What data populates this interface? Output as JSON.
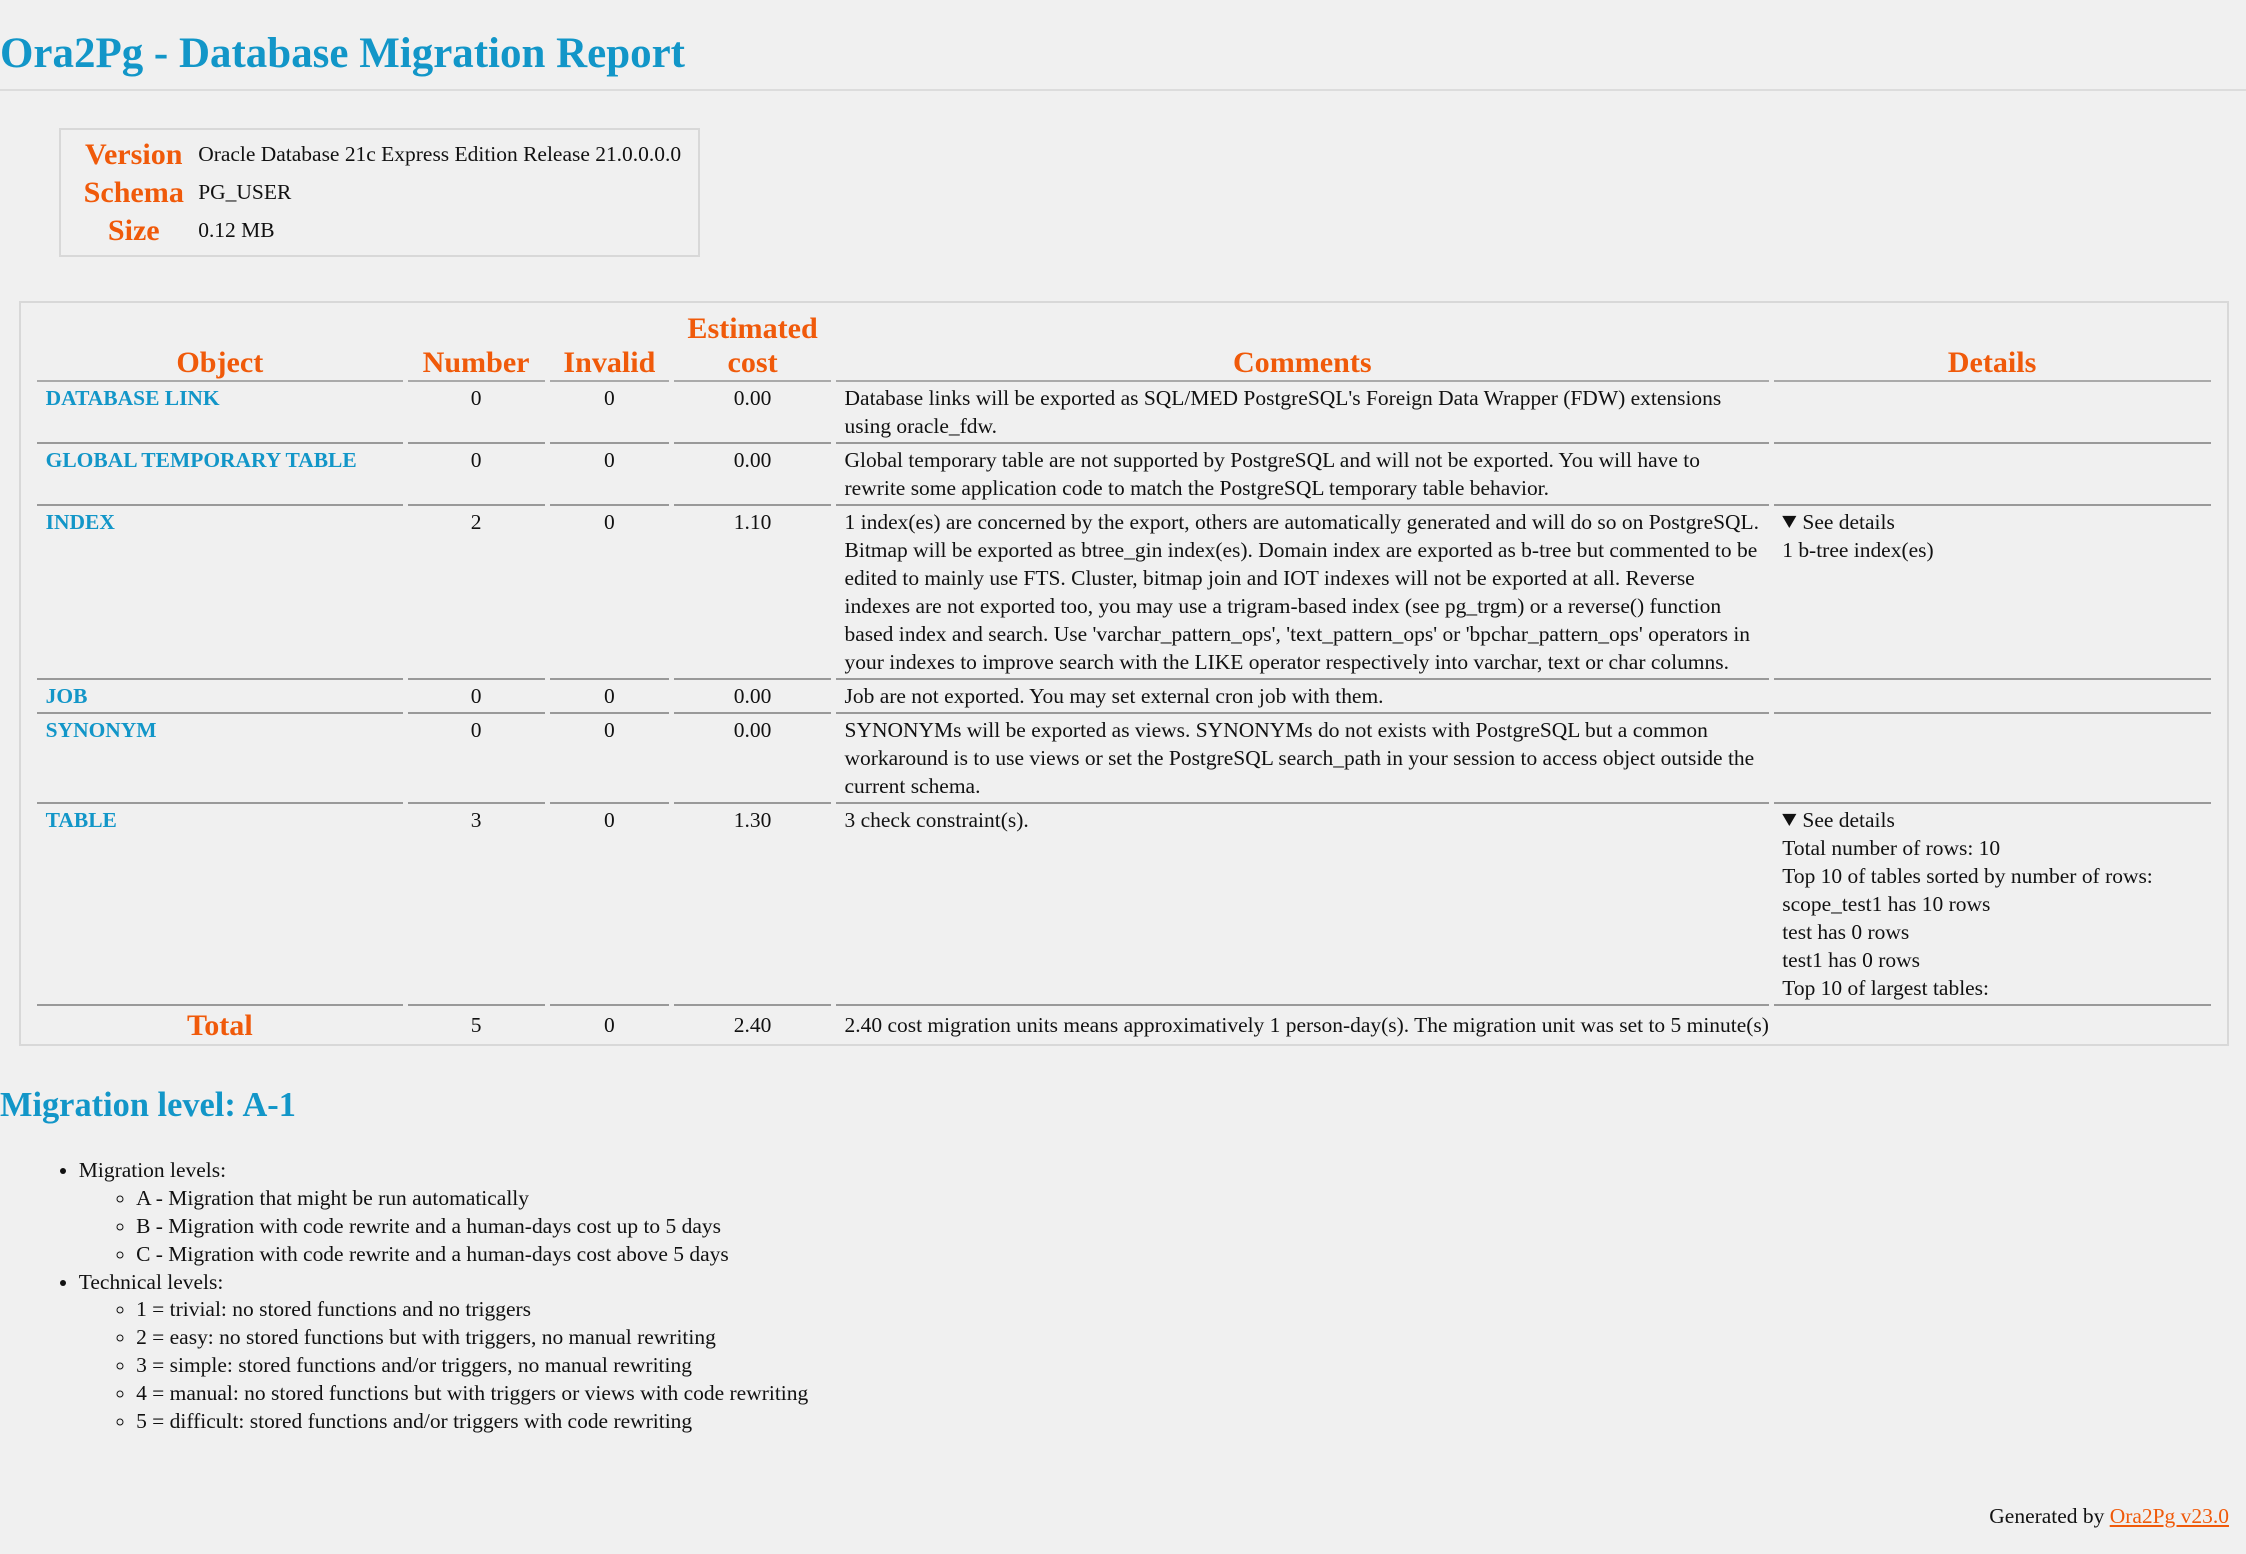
{
  "title": "Ora2Pg - Database Migration Report",
  "info": [
    {
      "label": "Version",
      "value": "Oracle Database 21c Express Edition Release 21.0.0.0.0"
    },
    {
      "label": "Schema",
      "value": "PG_USER"
    },
    {
      "label": "Size",
      "value": "0.12 MB"
    }
  ],
  "table": {
    "headers": [
      "Object",
      "Number",
      "Invalid",
      "Estimated cost",
      "Comments",
      "Details"
    ],
    "rows": [
      {
        "object": "DATABASE LINK",
        "number": "0",
        "invalid": "0",
        "cost": "0.00",
        "comments": "Database links will be exported as SQL/MED PostgreSQL's Foreign Data Wrapper (FDW) extensions using oracle_fdw.",
        "details": []
      },
      {
        "object": "GLOBAL TEMPORARY TABLE",
        "number": "0",
        "invalid": "0",
        "cost": "0.00",
        "comments": "Global temporary table are not supported by PostgreSQL and will not be exported. You will have to rewrite some application code to match the PostgreSQL temporary table behavior.",
        "details": []
      },
      {
        "object": "INDEX",
        "number": "2",
        "invalid": "0",
        "cost": "1.10",
        "comments": "1 index(es) are concerned by the export, others are automatically generated and will do so on PostgreSQL. Bitmap will be exported as btree_gin index(es). Domain index are exported as b-tree but commented to be edited to mainly use FTS. Cluster, bitmap join and IOT indexes will not be exported at all. Reverse indexes are not exported too, you may use a trigram-based index (see pg_trgm) or a reverse() function based index and search. Use 'varchar_pattern_ops', 'text_pattern_ops' or 'bpchar_pattern_ops' operators in your indexes to improve search with the LIKE operator respectively into varchar, text or char columns.",
        "summary": "See details",
        "details": [
          "1 b-tree index(es)"
        ]
      },
      {
        "object": "JOB",
        "number": "0",
        "invalid": "0",
        "cost": "0.00",
        "comments": "Job are not exported. You may set external cron job with them.",
        "details": []
      },
      {
        "object": "SYNONYM",
        "number": "0",
        "invalid": "0",
        "cost": "0.00",
        "comments": "SYNONYMs will be exported as views. SYNONYMs do not exists with PostgreSQL but a common workaround is to use views or set the PostgreSQL search_path in your session to access object outside the current schema.",
        "details": []
      },
      {
        "object": "TABLE",
        "number": "3",
        "invalid": "0",
        "cost": "1.30",
        "comments": "3 check constraint(s).",
        "summary": "See details",
        "details": [
          "Total number of rows: 10",
          "Top 10 of tables sorted by number of rows:",
          "scope_test1 has 10 rows",
          "test has 0 rows",
          "test1 has 0 rows",
          "Top 10 of largest tables:"
        ]
      }
    ],
    "total": {
      "label": "Total",
      "number": "5",
      "invalid": "0",
      "cost": "2.40",
      "comments": "2.40 cost migration units means approximatively 1 person-day(s). The migration unit was set to 5 minute(s)"
    }
  },
  "migration_level": "Migration level: A-1",
  "levels": [
    {
      "title": "Migration levels:",
      "items": [
        "A - Migration that might be run automatically",
        "B - Migration with code rewrite and a human-days cost up to 5 days",
        "C - Migration with code rewrite and a human-days cost above 5 days"
      ]
    },
    {
      "title": "Technical levels:",
      "items": [
        "1 = trivial: no stored functions and no triggers",
        "2 = easy: no stored functions but with triggers, no manual rewriting",
        "3 = simple: stored functions and/or triggers, no manual rewriting",
        "4 = manual: no stored functions but with triggers or views with code rewriting",
        "5 = difficult: stored functions and/or triggers with code rewriting"
      ]
    }
  ],
  "footer": {
    "prefix": "Generated by ",
    "link": "Ora2Pg v23.0"
  },
  "colors": {
    "heading": "#1296c8",
    "label": "#f05a0a"
  }
}
